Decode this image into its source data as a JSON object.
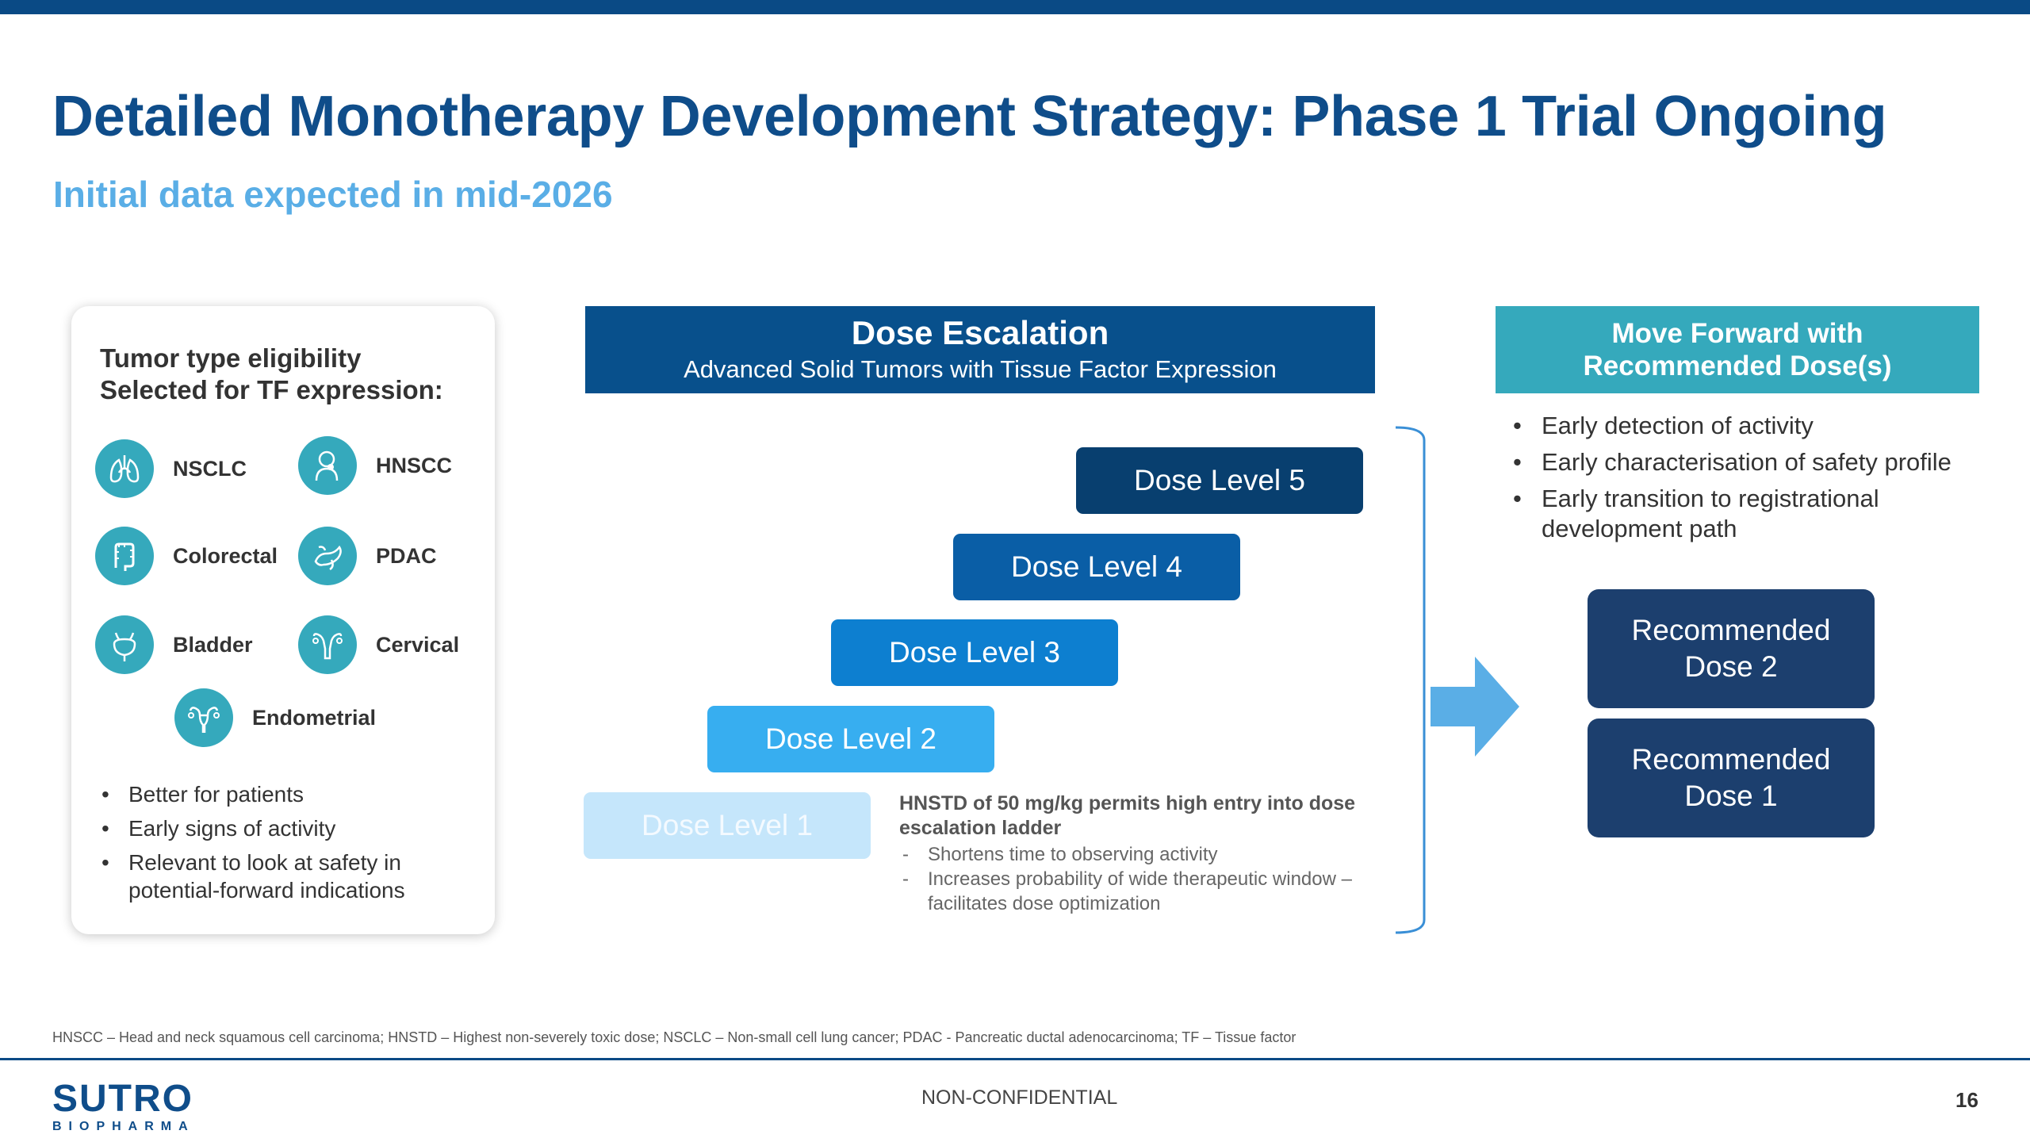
{
  "slide": {
    "title": "Detailed Monotherapy Development Strategy: Phase 1 Trial Ongoing",
    "subtitle": "Initial data expected in mid-2026"
  },
  "tumor_card": {
    "heading_line1": "Tumor type eligibility",
    "heading_line2": "Selected for TF expression:",
    "tumors": [
      {
        "label": "NSCLC",
        "icon": "lungs-icon"
      },
      {
        "label": "HNSCC",
        "icon": "head-neck-icon"
      },
      {
        "label": "Colorectal",
        "icon": "colon-icon"
      },
      {
        "label": "PDAC",
        "icon": "pancreas-icon"
      },
      {
        "label": "Bladder",
        "icon": "bladder-icon"
      },
      {
        "label": "Cervical",
        "icon": "cervix-icon"
      },
      {
        "label": "Endometrial",
        "icon": "uterus-icon"
      }
    ],
    "bullets": [
      "Better for patients",
      "Early signs of activity",
      "Relevant to look at safety in potential-forward indications"
    ]
  },
  "dose_escalation": {
    "title": "Dose Escalation",
    "subtitle": "Advanced Solid Tumors with Tissue Factor Expression",
    "levels": [
      {
        "label": "Dose Level 1",
        "color": "#c5e6fb"
      },
      {
        "label": "Dose Level 2",
        "color": "#37aef0"
      },
      {
        "label": "Dose Level 3",
        "color": "#0d7fd0"
      },
      {
        "label": "Dose Level 4",
        "color": "#0a5ea6"
      },
      {
        "label": "Dose Level 5",
        "color": "#083f6f"
      }
    ],
    "hnstd_title": "HNSTD of 50 mg/kg permits high entry into dose escalation ladder",
    "hnstd_points": [
      "Shortens time to observing activity",
      "Increases probability of wide therapeutic window – facilitates dose optimization"
    ]
  },
  "move_forward": {
    "title_line1": "Move Forward with",
    "title_line2": "Recommended Dose(s)",
    "bullets": [
      "Early detection of activity",
      "Early characterisation of safety profile",
      "Early transition to registrational development path"
    ],
    "recommended": [
      {
        "line1": "Recommended",
        "line2": "Dose 2"
      },
      {
        "line1": "Recommended",
        "line2": "Dose 1"
      }
    ]
  },
  "footer": {
    "footnote": "HNSCC – Head and neck squamous cell carcinoma; HNSTD – Highest non-severely toxic dose; NSCLC – Non-small cell lung cancer; PDAC - Pancreatic ductal adenocarcinoma; TF – Tissue factor",
    "logo_main": "SUTRO",
    "logo_sub": "BIOPHARMA",
    "confidential": "NON-CONFIDENTIAL",
    "page_number": "16"
  },
  "colors": {
    "brand_navy": "#0f4d8a",
    "accent_light_blue": "#5aaee6",
    "teal": "#35a9bc",
    "recommended_box": "#1c3f6e"
  }
}
